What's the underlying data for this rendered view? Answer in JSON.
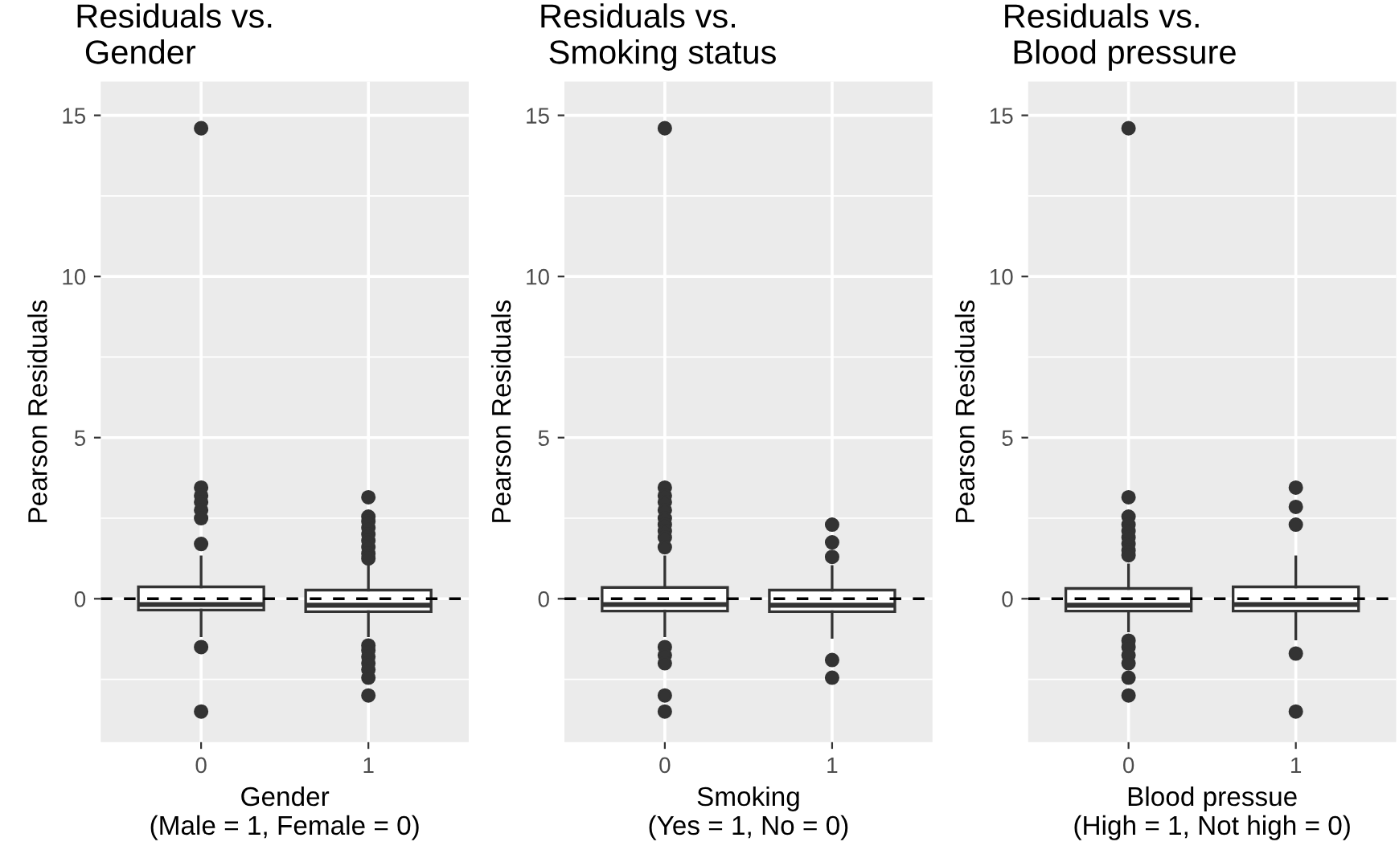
{
  "chart_data": [
    {
      "type": "box",
      "title": "Residuals vs.\n Gender",
      "xlabel": "Gender\n(Male = 1, Female = 0)",
      "ylabel": "Pearson Residuals",
      "categories": [
        "0",
        "1"
      ],
      "ylim": [
        -4.45,
        16.05
      ],
      "yticks": [
        0,
        5,
        10,
        15
      ],
      "grid": true,
      "ref_lines": [
        {
          "axis": "y",
          "value": 0,
          "line_style": "dashed"
        }
      ],
      "boxes": [
        {
          "low": -1.15,
          "q1": -0.35,
          "median": -0.18,
          "q3": 0.37,
          "high": 1.3,
          "outliers": [
            14.6,
            3.45,
            3.2,
            3.0,
            2.75,
            2.5,
            1.7,
            -1.5,
            -3.5
          ]
        },
        {
          "low": -1.15,
          "q1": -0.4,
          "median": -0.2,
          "q3": 0.27,
          "high": 1.0,
          "outliers": [
            3.15,
            2.55,
            2.4,
            2.2,
            2.0,
            1.8,
            1.6,
            1.4,
            1.25,
            -1.45,
            -1.6,
            -1.8,
            -2.0,
            -2.2,
            -2.45,
            -3.0
          ]
        }
      ]
    },
    {
      "type": "box",
      "title": "Residuals vs.\n Smoking status",
      "xlabel": "Smoking\n(Yes = 1, No = 0)",
      "ylabel": "Pearson Residuals",
      "categories": [
        "0",
        "1"
      ],
      "ylim": [
        -4.45,
        16.05
      ],
      "yticks": [
        0,
        5,
        10,
        15
      ],
      "grid": true,
      "ref_lines": [
        {
          "axis": "y",
          "value": 0,
          "line_style": "dashed"
        }
      ],
      "boxes": [
        {
          "low": -1.15,
          "q1": -0.38,
          "median": -0.18,
          "q3": 0.35,
          "high": 1.3,
          "outliers": [
            14.6,
            3.45,
            3.2,
            3.0,
            2.75,
            2.5,
            2.3,
            2.1,
            1.9,
            1.6,
            -1.5,
            -1.75,
            -2.0,
            -3.0,
            -3.5
          ]
        },
        {
          "low": -1.2,
          "q1": -0.4,
          "median": -0.2,
          "q3": 0.27,
          "high": 1.0,
          "outliers": [
            2.3,
            1.75,
            1.3,
            -1.9,
            -2.45
          ]
        }
      ]
    },
    {
      "type": "box",
      "title": "Residuals vs.\n Blood pressure",
      "xlabel": "Blood pressue\n(High = 1, Not high = 0)",
      "ylabel": "Pearson Residuals",
      "categories": [
        "0",
        "1"
      ],
      "ylim": [
        -4.45,
        16.05
      ],
      "yticks": [
        0,
        5,
        10,
        15
      ],
      "grid": true,
      "ref_lines": [
        {
          "axis": "y",
          "value": 0,
          "line_style": "dashed"
        }
      ],
      "boxes": [
        {
          "low": -1.0,
          "q1": -0.38,
          "median": -0.2,
          "q3": 0.32,
          "high": 1.05,
          "outliers": [
            14.6,
            3.15,
            2.55,
            2.3,
            2.1,
            1.9,
            1.7,
            1.5,
            1.35,
            -1.3,
            -1.5,
            -1.75,
            -2.0,
            -2.45,
            -3.0
          ]
        },
        {
          "low": -1.25,
          "q1": -0.38,
          "median": -0.18,
          "q3": 0.37,
          "high": 1.3,
          "outliers": [
            3.45,
            2.85,
            2.3,
            -1.7,
            -3.5
          ]
        }
      ]
    }
  ]
}
